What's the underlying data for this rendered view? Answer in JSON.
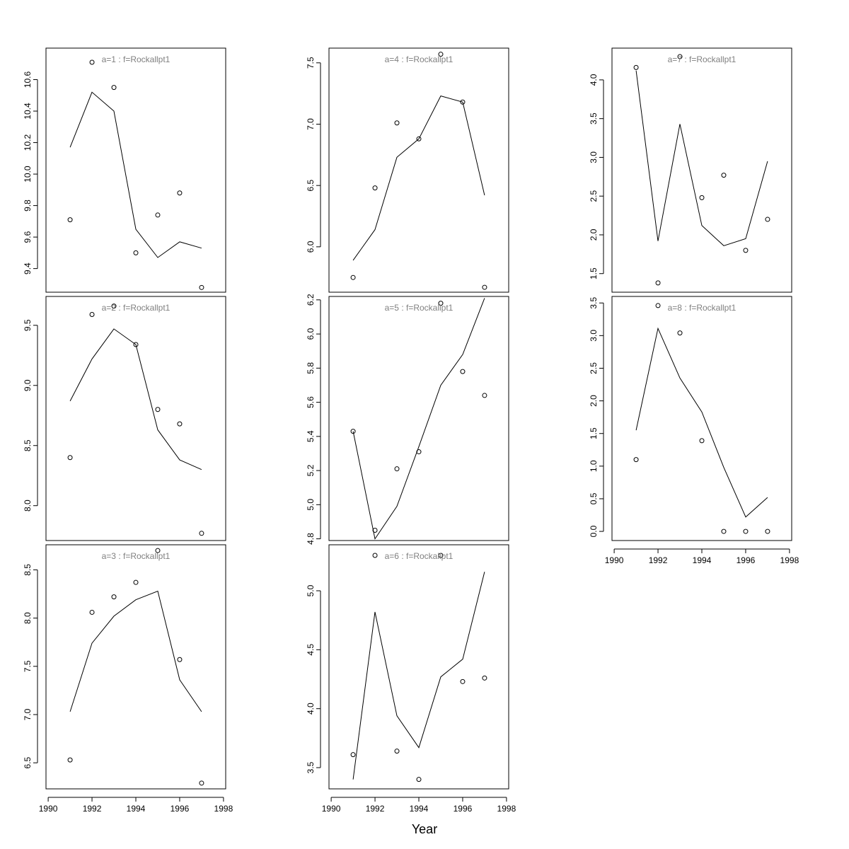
{
  "figure": {
    "xlabel": "Year",
    "x_range": [
      1989.9,
      1998.1
    ],
    "x_ticks": [
      1990,
      1992,
      1994,
      1996,
      1998
    ],
    "colors": {
      "line": "#000000",
      "points": "#000000",
      "title": "#808080",
      "axes": "#000000"
    }
  },
  "chart_data": [
    {
      "type": "scatter",
      "title": "a=1  :  f=Rockallpt1",
      "x": [
        1991,
        1992,
        1993,
        1994,
        1995,
        1996,
        1997
      ],
      "series": [
        {
          "kind": "points",
          "values": [
            9.71,
            10.71,
            10.55,
            9.5,
            9.74,
            9.88,
            9.28
          ]
        },
        {
          "kind": "line",
          "values": [
            10.17,
            10.52,
            10.4,
            9.65,
            9.47,
            9.57,
            9.53
          ]
        }
      ],
      "ylim": [
        9.25,
        10.8
      ],
      "y_ticks": [
        9.4,
        9.6,
        9.8,
        10.0,
        10.2,
        10.4,
        10.6
      ]
    },
    {
      "type": "scatter",
      "title": "a=2  :  f=Rockallpt1",
      "x": [
        1991,
        1992,
        1993,
        1994,
        1995,
        1996,
        1997
      ],
      "series": [
        {
          "kind": "points",
          "values": [
            8.4,
            9.59,
            9.66,
            9.34,
            8.8,
            8.68,
            7.77
          ]
        },
        {
          "kind": "line",
          "values": [
            8.87,
            9.22,
            9.47,
            9.34,
            8.63,
            8.38,
            8.3
          ]
        }
      ],
      "ylim": [
        7.71,
        9.74
      ],
      "y_ticks": [
        8.0,
        8.5,
        9.0,
        9.5
      ]
    },
    {
      "type": "scatter",
      "title": "a=3  :  f=Rockallpt1",
      "x": [
        1991,
        1992,
        1993,
        1994,
        1995,
        1996,
        1997
      ],
      "series": [
        {
          "kind": "points",
          "values": [
            6.53,
            8.06,
            8.22,
            8.37,
            8.7,
            7.57,
            6.29
          ]
        },
        {
          "kind": "line",
          "values": [
            7.03,
            7.74,
            8.02,
            8.19,
            8.28,
            7.36,
            7.03
          ]
        }
      ],
      "ylim": [
        6.23,
        8.76
      ],
      "y_ticks": [
        6.5,
        7.0,
        7.5,
        8.0,
        8.5
      ]
    },
    {
      "type": "scatter",
      "title": "a=4  :  f=Rockallpt1",
      "x": [
        1991,
        1992,
        1993,
        1994,
        1995,
        1996,
        1997
      ],
      "series": [
        {
          "kind": "points",
          "values": [
            5.75,
            6.48,
            7.01,
            6.88,
            7.57,
            7.18,
            5.67
          ]
        },
        {
          "kind": "line",
          "values": [
            5.89,
            6.14,
            6.73,
            6.88,
            7.23,
            7.18,
            6.42
          ]
        }
      ],
      "ylim": [
        5.63,
        7.62
      ],
      "y_ticks": [
        6.0,
        6.5,
        7.0,
        7.5
      ]
    },
    {
      "type": "scatter",
      "title": "a=5  :  f=Rockallpt1",
      "x": [
        1991,
        1992,
        1993,
        1994,
        1995,
        1996,
        1997
      ],
      "series": [
        {
          "kind": "points",
          "values": [
            5.43,
            4.85,
            5.21,
            5.31,
            6.18,
            5.78,
            5.64
          ]
        },
        {
          "kind": "line",
          "values": [
            5.43,
            4.8,
            4.99,
            5.34,
            5.7,
            5.88,
            6.21
          ]
        }
      ],
      "ylim": [
        4.79,
        6.22
      ],
      "y_ticks": [
        4.8,
        5.0,
        5.2,
        5.4,
        5.6,
        5.8,
        6.0,
        6.2
      ]
    },
    {
      "type": "scatter",
      "title": "a=6  :  f=Rockallpt1",
      "x": [
        1991,
        1992,
        1993,
        1994,
        1995,
        1996,
        1997
      ],
      "series": [
        {
          "kind": "points",
          "values": [
            3.61,
            5.3,
            3.64,
            3.4,
            5.3,
            4.23,
            4.26
          ]
        },
        {
          "kind": "line",
          "values": [
            3.4,
            4.82,
            3.94,
            3.67,
            4.27,
            4.42,
            5.16
          ]
        }
      ],
      "ylim": [
        3.32,
        5.39
      ],
      "y_ticks": [
        3.5,
        4.0,
        4.5,
        5.0
      ]
    },
    {
      "type": "scatter",
      "title": "a=7  :  f=Rockallpt1",
      "x": [
        1991,
        1992,
        1993,
        1994,
        1995,
        1996,
        1997
      ],
      "series": [
        {
          "kind": "points",
          "values": [
            4.16,
            1.38,
            4.3,
            2.48,
            2.77,
            1.8,
            2.2
          ]
        },
        {
          "kind": "line",
          "values": [
            4.12,
            1.92,
            3.43,
            2.12,
            1.86,
            1.95,
            2.95
          ]
        }
      ],
      "ylim": [
        1.26,
        4.41
      ],
      "y_ticks": [
        1.5,
        2.0,
        2.5,
        3.0,
        3.5,
        4.0
      ]
    },
    {
      "type": "scatter",
      "title": "a=8  :  f=Rockallpt1",
      "x": [
        1991,
        1992,
        1993,
        1994,
        1995,
        1996,
        1997
      ],
      "series": [
        {
          "kind": "points",
          "values": [
            1.1,
            3.46,
            3.04,
            1.39,
            0.0,
            0.0,
            0.0
          ]
        },
        {
          "kind": "line",
          "values": [
            1.55,
            3.11,
            2.35,
            1.83,
            0.98,
            0.22,
            0.52
          ]
        }
      ],
      "ylim": [
        -0.14,
        3.6
      ],
      "y_ticks": [
        0.0,
        0.5,
        1.0,
        1.5,
        2.0,
        2.5,
        3.0,
        3.5
      ]
    }
  ]
}
